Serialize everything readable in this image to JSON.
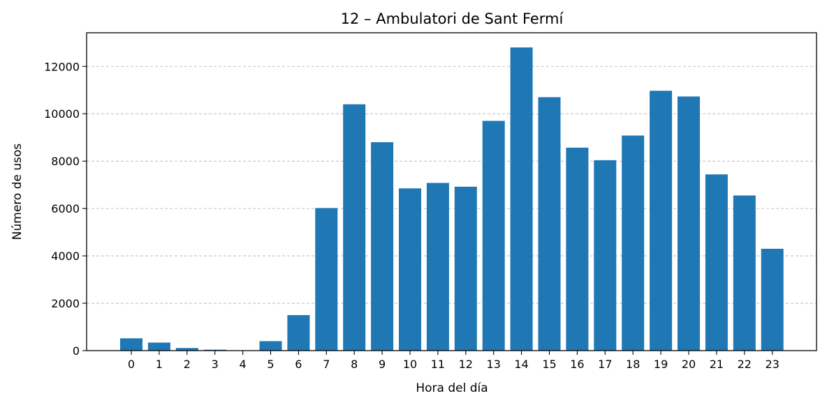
{
  "chart_data": {
    "type": "bar",
    "title": "12 – Ambulatori de Sant Fermí",
    "xlabel": "Hora del día",
    "ylabel": "Número de usos",
    "categories": [
      "0",
      "1",
      "2",
      "3",
      "4",
      "5",
      "6",
      "7",
      "8",
      "9",
      "10",
      "11",
      "12",
      "13",
      "14",
      "15",
      "16",
      "17",
      "18",
      "19",
      "20",
      "21",
      "22",
      "23"
    ],
    "values": [
      520,
      340,
      110,
      40,
      10,
      400,
      1500,
      6020,
      10400,
      8800,
      6850,
      7080,
      6920,
      9700,
      12800,
      10700,
      8570,
      8040,
      9080,
      10970,
      10730,
      7440,
      6550,
      4300
    ],
    "ylim": [
      0,
      13420
    ],
    "yticks": [
      0,
      2000,
      4000,
      6000,
      8000,
      10000,
      12000
    ],
    "grid": "y",
    "bar_color": "#1f77b4"
  }
}
